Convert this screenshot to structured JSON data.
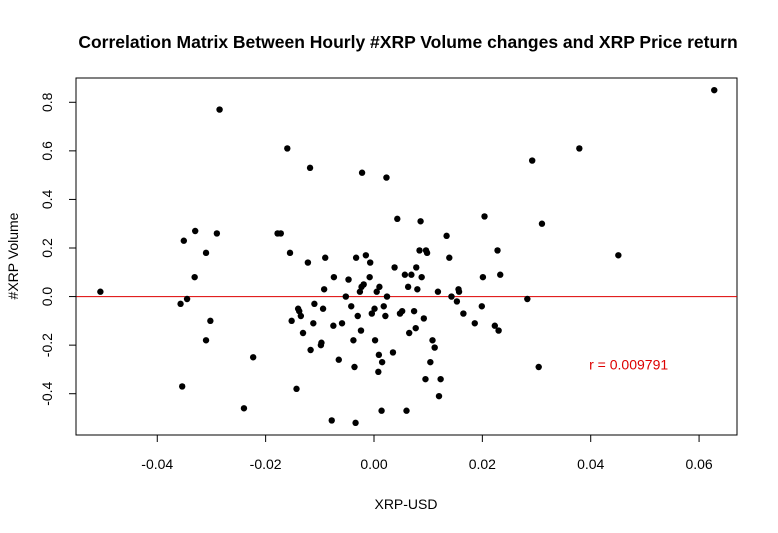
{
  "chart_data": {
    "type": "scatter",
    "title": "Correlation Matrix Between Hourly #XRP Volume changes and XRP Price return",
    "xlabel": "XRP-USD",
    "ylabel": "#XRP Volume",
    "xlim": [
      -0.055,
      0.067
    ],
    "ylim": [
      -0.57,
      0.9
    ],
    "x_ticks": [
      -0.04,
      -0.02,
      0.0,
      0.02,
      0.04,
      0.06
    ],
    "x_tick_labels": [
      "-0.04",
      "-0.02",
      "0.00",
      "0.02",
      "0.04",
      "0.06"
    ],
    "y_ticks": [
      -0.4,
      -0.2,
      0.0,
      0.2,
      0.4,
      0.6,
      0.8
    ],
    "y_tick_labels": [
      "-0.4",
      "-0.2",
      "0.0",
      "0.2",
      "0.4",
      "0.6",
      "0.8"
    ],
    "grid": false,
    "reference_line": {
      "y": 0,
      "color": "#dd0000"
    },
    "annotation": {
      "text": "r = 0.009791",
      "x": 0.047,
      "y": -0.3,
      "color": "#dd0000"
    },
    "point_color": "#000000",
    "points": [
      [
        -0.0505,
        0.02
      ],
      [
        -0.0357,
        -0.03
      ],
      [
        -0.0354,
        -0.37
      ],
      [
        -0.0351,
        0.23
      ],
      [
        -0.0345,
        -0.01
      ],
      [
        -0.0331,
        0.08
      ],
      [
        -0.033,
        0.27
      ],
      [
        -0.031,
        -0.18
      ],
      [
        -0.031,
        0.18
      ],
      [
        -0.0302,
        -0.1
      ],
      [
        -0.029,
        0.26
      ],
      [
        -0.0285,
        0.77
      ],
      [
        -0.024,
        -0.46
      ],
      [
        -0.0223,
        -0.25
      ],
      [
        -0.0178,
        0.26
      ],
      [
        -0.0172,
        0.26
      ],
      [
        -0.016,
        0.61
      ],
      [
        -0.0155,
        0.18
      ],
      [
        -0.0152,
        -0.1
      ],
      [
        -0.0143,
        -0.38
      ],
      [
        -0.014,
        -0.05
      ],
      [
        -0.0138,
        -0.06
      ],
      [
        -0.0135,
        -0.08
      ],
      [
        -0.0131,
        -0.15
      ],
      [
        -0.0122,
        0.14
      ],
      [
        -0.0118,
        0.53
      ],
      [
        -0.0117,
        -0.22
      ],
      [
        -0.0112,
        -0.11
      ],
      [
        -0.011,
        -0.03
      ],
      [
        -0.0098,
        -0.2
      ],
      [
        -0.0097,
        -0.19
      ],
      [
        -0.0094,
        -0.05
      ],
      [
        -0.0092,
        0.03
      ],
      [
        -0.009,
        0.16
      ],
      [
        -0.0078,
        -0.51
      ],
      [
        -0.0075,
        -0.12
      ],
      [
        -0.0074,
        0.08
      ],
      [
        -0.0065,
        -0.26
      ],
      [
        -0.0059,
        -0.11
      ],
      [
        -0.0052,
        0.0
      ],
      [
        -0.0047,
        0.07
      ],
      [
        -0.0042,
        -0.04
      ],
      [
        -0.0038,
        -0.18
      ],
      [
        -0.0036,
        -0.29
      ],
      [
        -0.0034,
        -0.52
      ],
      [
        -0.0033,
        0.16
      ],
      [
        -0.003,
        -0.08
      ],
      [
        -0.0026,
        0.02
      ],
      [
        -0.0024,
        -0.14
      ],
      [
        -0.0023,
        0.04
      ],
      [
        -0.0022,
        0.51
      ],
      [
        -0.0019,
        0.05
      ],
      [
        -0.0015,
        0.17
      ],
      [
        -0.0008,
        0.08
      ],
      [
        -0.0007,
        0.14
      ],
      [
        -0.0004,
        -0.07
      ],
      [
        0.0001,
        -0.05
      ],
      [
        0.0002,
        -0.18
      ],
      [
        0.0005,
        0.02
      ],
      [
        0.0008,
        -0.31
      ],
      [
        0.0009,
        -0.24
      ],
      [
        0.001,
        0.04
      ],
      [
        0.0014,
        -0.47
      ],
      [
        0.0015,
        -0.27
      ],
      [
        0.0018,
        -0.04
      ],
      [
        0.0021,
        -0.08
      ],
      [
        0.0023,
        0.49
      ],
      [
        0.0024,
        0.0
      ],
      [
        0.0035,
        -0.23
      ],
      [
        0.0038,
        0.12
      ],
      [
        0.0043,
        0.32
      ],
      [
        0.0048,
        -0.07
      ],
      [
        0.0052,
        -0.06
      ],
      [
        0.0057,
        0.09
      ],
      [
        0.006,
        -0.47
      ],
      [
        0.0063,
        0.04
      ],
      [
        0.0065,
        -0.15
      ],
      [
        0.0069,
        0.09
      ],
      [
        0.0074,
        -0.06
      ],
      [
        0.0077,
        -0.13
      ],
      [
        0.0078,
        0.12
      ],
      [
        0.008,
        0.03
      ],
      [
        0.0084,
        0.19
      ],
      [
        0.0086,
        0.31
      ],
      [
        0.0088,
        0.08
      ],
      [
        0.0092,
        -0.09
      ],
      [
        0.0095,
        -0.34
      ],
      [
        0.0096,
        0.19
      ],
      [
        0.0098,
        0.18
      ],
      [
        0.0104,
        -0.27
      ],
      [
        0.0108,
        -0.18
      ],
      [
        0.0112,
        -0.21
      ],
      [
        0.0118,
        0.02
      ],
      [
        0.012,
        -0.41
      ],
      [
        0.0123,
        -0.34
      ],
      [
        0.0134,
        0.25
      ],
      [
        0.0139,
        0.16
      ],
      [
        0.0143,
        0.0
      ],
      [
        0.0153,
        -0.02
      ],
      [
        0.0156,
        0.03
      ],
      [
        0.0157,
        0.02
      ],
      [
        0.0165,
        -0.07
      ],
      [
        0.0186,
        -0.11
      ],
      [
        0.0199,
        -0.04
      ],
      [
        0.0201,
        0.08
      ],
      [
        0.0204,
        0.33
      ],
      [
        0.0223,
        -0.12
      ],
      [
        0.0228,
        0.19
      ],
      [
        0.023,
        -0.14
      ],
      [
        0.0233,
        0.09
      ],
      [
        0.0283,
        -0.01
      ],
      [
        0.0292,
        0.56
      ],
      [
        0.0304,
        -0.29
      ],
      [
        0.031,
        0.3
      ],
      [
        0.0379,
        0.61
      ],
      [
        0.0451,
        0.17
      ],
      [
        0.0628,
        0.85
      ]
    ]
  }
}
